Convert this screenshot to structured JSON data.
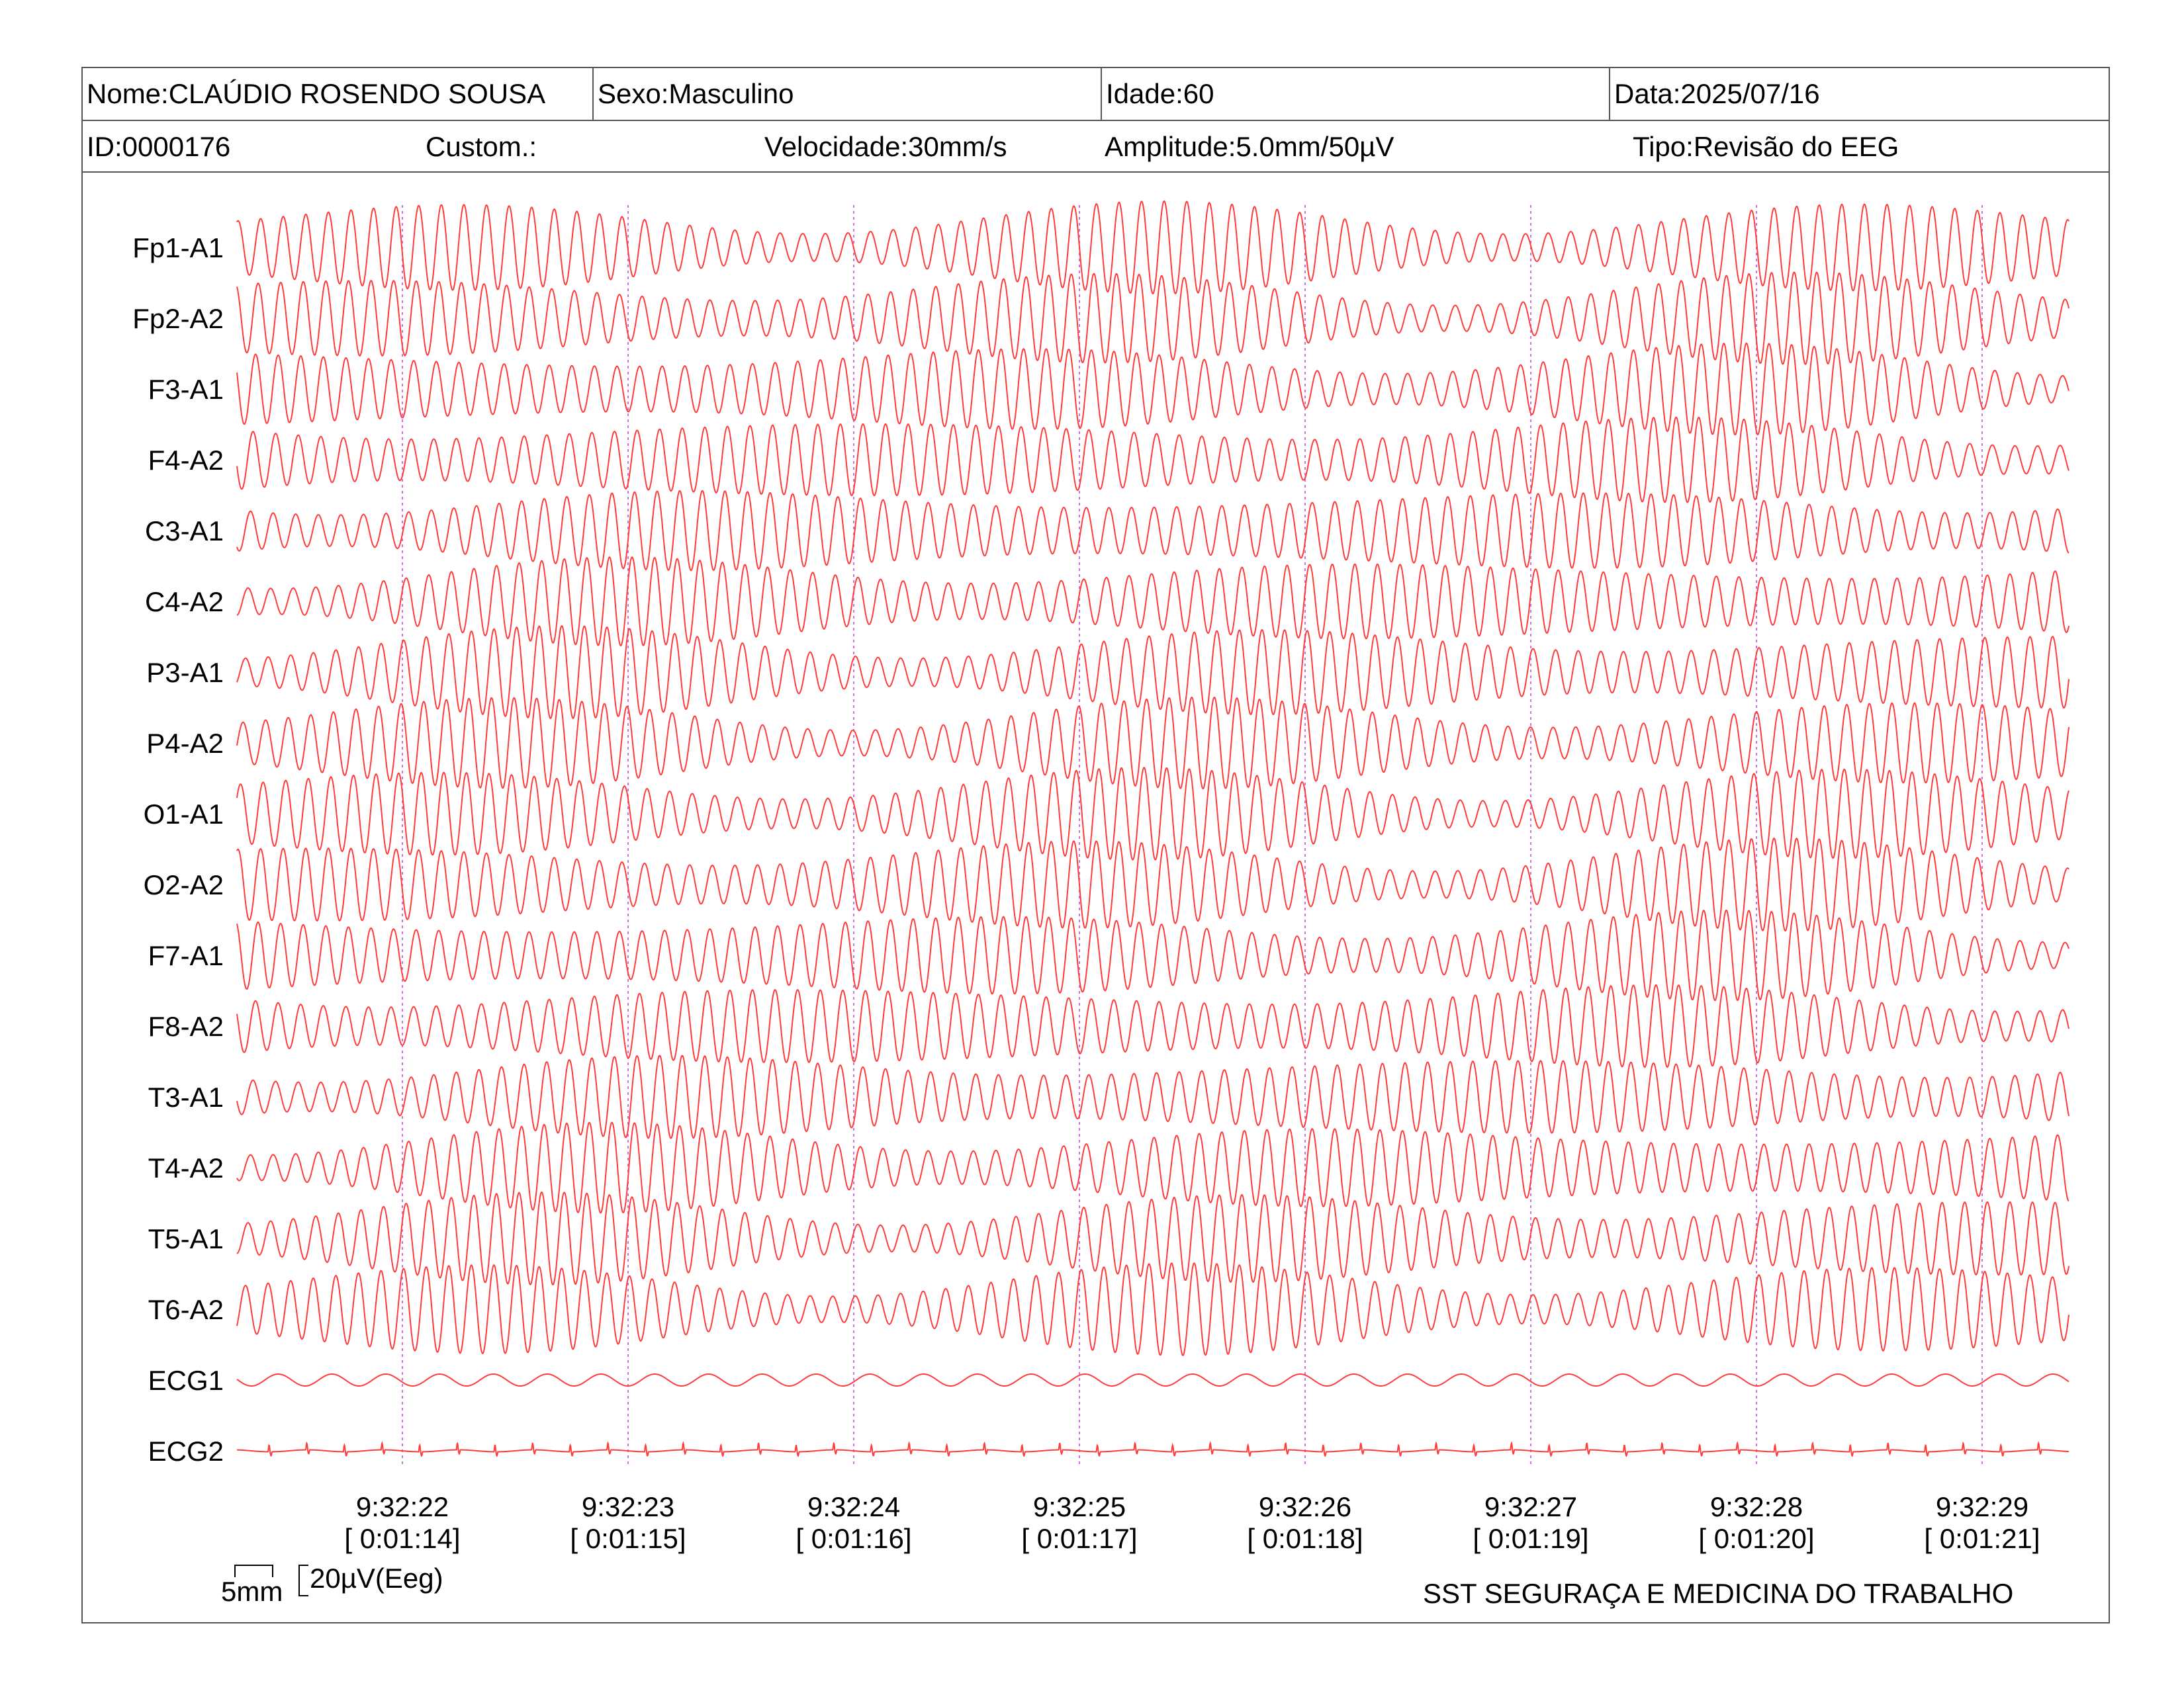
{
  "header": {
    "name": "Nome:CLAÚDIO ROSENDO SOUSA",
    "sex": "Sexo:Masculino",
    "age": "Idade:60",
    "date": "Data:2025/07/16",
    "id": "ID:0000176",
    "custom": "Custom.:",
    "speed": "Velocidade:30mm/s",
    "amplitude": "Amplitude:5.0mm/50µV",
    "type": "Tipo:Revisão do EEG"
  },
  "scale": {
    "time_label": "5mm",
    "amp_label": "20µV(Eeg)"
  },
  "footer": {
    "institution": "SST SEGURAÇA E MEDICINA DO TRABALHO"
  },
  "colors": {
    "trace": "#ff3b3b",
    "time_marker": "#d070e0",
    "border": "#555555"
  },
  "chart_data": {
    "type": "line",
    "title": "",
    "xlabel": "",
    "ylabel": "",
    "channels": [
      "Fp1-A1",
      "Fp2-A2",
      "F3-A1",
      "F4-A2",
      "C3-A1",
      "C4-A2",
      "P3-A1",
      "P4-A2",
      "O1-A1",
      "O2-A2",
      "F7-A1",
      "F8-A2",
      "T3-A1",
      "T4-A2",
      "T5-A1",
      "T6-A2",
      "ECG1",
      "ECG2"
    ],
    "time_ticks": [
      {
        "clock": "9:32:22",
        "elapsed": "[ 0:01:14]"
      },
      {
        "clock": "9:32:23",
        "elapsed": "[ 0:01:15]"
      },
      {
        "clock": "9:32:24",
        "elapsed": "[ 0:01:16]"
      },
      {
        "clock": "9:32:25",
        "elapsed": "[ 0:01:17]"
      },
      {
        "clock": "9:32:26",
        "elapsed": "[ 0:01:18]"
      },
      {
        "clock": "9:32:27",
        "elapsed": "[ 0:01:19]"
      },
      {
        "clock": "9:32:28",
        "elapsed": "[ 0:01:20]"
      },
      {
        "clock": "9:32:29",
        "elapsed": "[ 0:01:21]"
      }
    ],
    "x_range_s": [
      -0.73,
      7.38
    ],
    "eeg_frequency_hz": 10,
    "ecg1_frequency_hz": 4.2,
    "ecg2_beat_rate_hz": 1.2,
    "grid": false,
    "legend": "none"
  }
}
